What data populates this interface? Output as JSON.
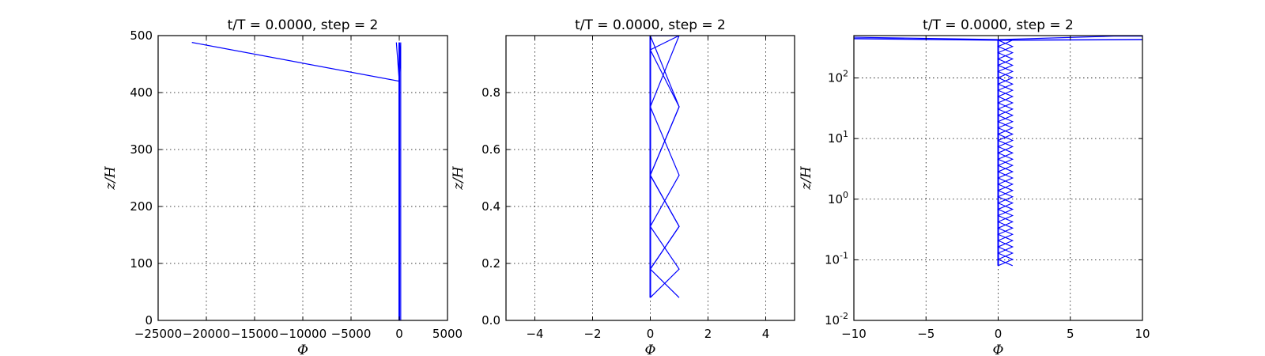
{
  "chart_data": [
    {
      "type": "line",
      "title": "t/T = 0.0000, step = 2",
      "xlabel": "Φ",
      "ylabel": "z/H",
      "xlim": [
        -25000,
        5000
      ],
      "ylim": [
        0,
        500
      ],
      "yscale": "linear",
      "grid": true,
      "xticks": [
        -25000,
        -20000,
        -15000,
        -10000,
        -5000,
        0,
        5000
      ],
      "xtick_labels": [
        "−25000",
        "−20000",
        "−15000",
        "−10000",
        "−5000",
        "0",
        "5000"
      ],
      "yticks": [
        0,
        100,
        200,
        300,
        400,
        500
      ],
      "ytick_labels": [
        "0",
        "100",
        "200",
        "300",
        "400",
        "500"
      ],
      "color": "#0000ff",
      "series": [
        {
          "x": [
            -21500,
            0,
            0
          ],
          "y": [
            488,
            420,
            0
          ],
          "width": 1.2
        },
        {
          "x": [
            0,
            0
          ],
          "y": [
            0,
            488
          ],
          "width": 2.0
        },
        {
          "x": [
            -300,
            0,
            150,
            150
          ],
          "y": [
            488,
            420,
            488,
            0
          ],
          "width": 1.2
        }
      ]
    },
    {
      "type": "line",
      "title": "t/T = 0.0000, step = 2",
      "xlabel": "Φ",
      "ylabel": "z/H",
      "xlim": [
        -5,
        5
      ],
      "ylim": [
        0,
        1
      ],
      "yscale": "linear",
      "grid": true,
      "xticks": [
        -4,
        -2,
        0,
        2,
        4
      ],
      "xtick_labels": [
        "−4",
        "−2",
        "0",
        "2",
        "4"
      ],
      "yticks": [
        0,
        0.2,
        0.4,
        0.6,
        0.8
      ],
      "ytick_labels": [
        "0.0",
        "0.2",
        "0.4",
        "0.6",
        "0.8"
      ],
      "color": "#0000ff",
      "series": [
        {
          "x": [
            0,
            0
          ],
          "y": [
            0.08,
            1.0
          ],
          "width": 2.0
        },
        {
          "x": [
            1,
            0,
            1,
            0,
            1,
            0,
            1,
            0,
            0.8
          ],
          "y": [
            0.08,
            0.18,
            0.33,
            0.51,
            0.75,
            0.95,
            1.0,
            1.0,
            1.0
          ],
          "width": 1.2
        },
        {
          "x": [
            0,
            1,
            0,
            1,
            0,
            1,
            0,
            1,
            0.8
          ],
          "y": [
            0.08,
            0.18,
            0.33,
            0.51,
            0.75,
            1.0,
            1.0,
            1.0,
            1.0
          ],
          "width": 1.2
        },
        {
          "x": [
            0,
            1,
            0,
            1,
            0,
            1,
            0
          ],
          "y": [
            0.18,
            0.33,
            0.51,
            0.75,
            1.0,
            1.0,
            1.0
          ],
          "width": 1.2
        }
      ]
    },
    {
      "type": "line",
      "title": "t/T = 0.0000, step = 2",
      "xlabel": "Φ",
      "ylabel": "z/H",
      "xlim": [
        -10,
        10
      ],
      "ylim": [
        0.01,
        500
      ],
      "yscale": "log",
      "grid": true,
      "xticks": [
        -10,
        -5,
        0,
        5,
        10
      ],
      "xtick_labels": [
        "−10",
        "−5",
        "0",
        "5",
        "10"
      ],
      "yticks": [
        0.01,
        0.1,
        1,
        10,
        100
      ],
      "ytick_labels": [
        {
          "base": "10",
          "exp": "-2"
        },
        {
          "base": "10",
          "exp": "-1"
        },
        {
          "base": "10",
          "exp": "0"
        },
        {
          "base": "10",
          "exp": "1"
        },
        {
          "base": "10",
          "exp": "2"
        }
      ],
      "color": "#0000ff",
      "series": [
        {
          "x": [
            0,
            0
          ],
          "y": [
            0.08,
            430
          ],
          "width": 2.0
        },
        {
          "x": [
            -10,
            0,
            10
          ],
          "y": [
            445,
            420,
            430
          ],
          "width": 1.5
        },
        {
          "x": [
            -10,
            0,
            8,
            10
          ],
          "y": [
            470,
            430,
            490,
            490
          ],
          "width": 1.2
        },
        {
          "zigzag": true,
          "x_low": 0,
          "x_high": 1,
          "y_from": 0.08,
          "y_to": 420,
          "segments": 36,
          "width": 1.1
        },
        {
          "zigzag": true,
          "x_low": 1,
          "x_high": 0,
          "y_from": 0.08,
          "y_to": 420,
          "segments": 36,
          "width": 1.1
        }
      ]
    }
  ]
}
